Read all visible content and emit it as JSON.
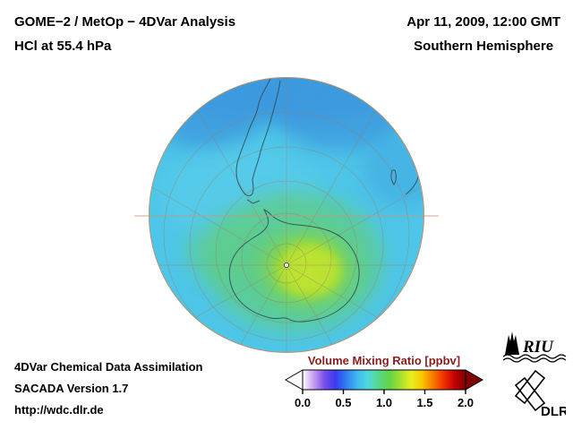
{
  "header": {
    "title_line1": "GOME−2 / MetOp − 4DVar Analysis",
    "title_line2": "HCl at 55.4 hPa",
    "datetime": "Apr 11, 2009, 12:00 GMT",
    "hemisphere": "Southern Hemisphere"
  },
  "footer": {
    "line1": "4DVar Chemical Data Assimilation",
    "line2": "SACADA Version 1.7",
    "line3": "http://wdc.dlr.de"
  },
  "colorbar": {
    "title": "Volume Mixing Ratio [ppbv]",
    "units": "ppbv",
    "range_min": 0.0,
    "range_max": 2.0,
    "ticks": [
      "0.0",
      "0.5",
      "1.0",
      "1.5",
      "2.0"
    ],
    "gradient": [
      "#ffffff",
      "#c9a0f0",
      "#7a4fe8",
      "#3b3bf0",
      "#2f7df0",
      "#3fb9f0",
      "#4fd9e0",
      "#57d98a",
      "#63d348",
      "#a5e030",
      "#e8ee20",
      "#f8c800",
      "#f87800",
      "#f03000",
      "#c00000",
      "#800000"
    ],
    "title_color": "#8b1c1c"
  },
  "colors": {
    "ocean_background": "#4ec6e8",
    "enhanced_region_green": "#8fd83c",
    "low_value_blue": "#3d9ade",
    "globe_rim": "#b98f68"
  },
  "logos": {
    "riu_text": "RIU",
    "dlr_text": "DLR"
  }
}
